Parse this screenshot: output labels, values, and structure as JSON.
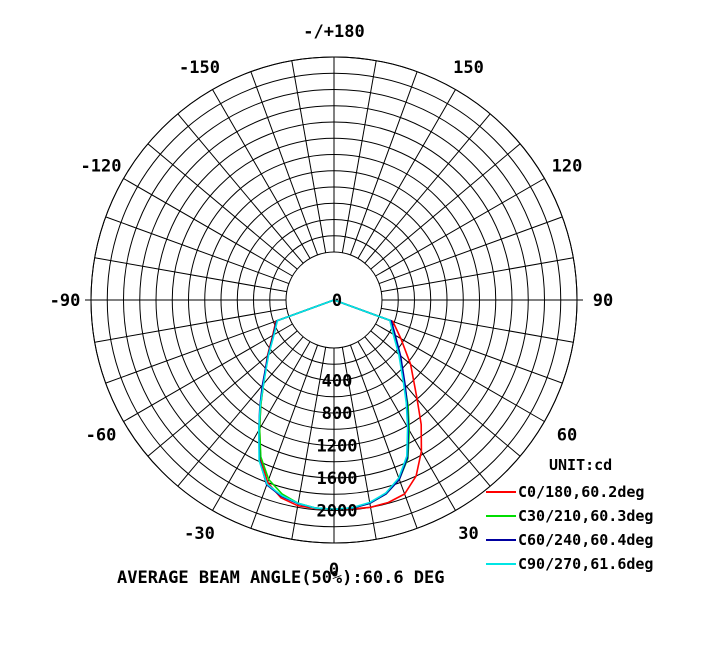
{
  "chart_data": {
    "type": "polar",
    "unit_label": "UNIT:cd",
    "footer": "AVERAGE BEAM ANGLE(50%):60.6 DEG",
    "angle_labels": [
      "-/+180",
      "150",
      "120",
      "90",
      "60",
      "30",
      "0",
      "-30",
      "-60",
      "-90",
      "-120",
      "-150"
    ],
    "angle_values": [
      180,
      150,
      120,
      90,
      60,
      30,
      0,
      -30,
      -60,
      -90,
      -120,
      -150
    ],
    "radial_ticks": [
      0,
      400,
      800,
      1200,
      1600,
      2000
    ],
    "radial_labels": [
      "0",
      "400",
      "800",
      "1200",
      "1600",
      "2000"
    ],
    "rmax": 2400,
    "series": [
      {
        "name": "C0/180,60.2deg",
        "color": "#ff0000",
        "angles": [
          -70,
          -60,
          -50,
          -40,
          -35,
          -30,
          -25,
          -20,
          -15,
          -10,
          -5,
          0,
          5,
          10,
          15,
          20,
          25,
          30,
          35,
          40,
          50,
          60,
          70
        ],
        "values": [
          170,
          280,
          480,
          760,
          980,
          1240,
          1550,
          1800,
          1930,
          1980,
          1985,
          1985,
          1990,
          2000,
          1990,
          1950,
          1800,
          1560,
          1280,
          1000,
          640,
          360,
          180
        ]
      },
      {
        "name": "C30/210,60.3deg",
        "color": "#00dd00",
        "angles": [
          -70,
          -60,
          -50,
          -40,
          -35,
          -30,
          -25,
          -20,
          -15,
          -10,
          -5,
          0,
          5,
          10,
          15,
          20,
          25,
          30,
          35,
          40,
          50,
          60,
          70
        ],
        "values": [
          160,
          270,
          470,
          760,
          980,
          1240,
          1540,
          1760,
          1880,
          1950,
          1980,
          1985,
          1980,
          1950,
          1880,
          1760,
          1560,
          1260,
          1000,
          760,
          460,
          260,
          150
        ]
      },
      {
        "name": "C60/240,60.4deg",
        "color": "#0000a0",
        "angles": [
          -70,
          -60,
          -50,
          -40,
          -35,
          -30,
          -25,
          -20,
          -15,
          -10,
          -5,
          0,
          5,
          10,
          15,
          20,
          25,
          30,
          35,
          40,
          50,
          60,
          70
        ],
        "values": [
          160,
          270,
          470,
          780,
          1000,
          1260,
          1580,
          1830,
          1910,
          1955,
          1980,
          1985,
          1980,
          1950,
          1880,
          1760,
          1550,
          1240,
          980,
          770,
          480,
          280,
          160
        ]
      },
      {
        "name": "C90/270,61.6deg",
        "color": "#00e5e5",
        "angles": [
          -70,
          -60,
          -50,
          -40,
          -35,
          -30,
          -25,
          -20,
          -15,
          -10,
          -5,
          0,
          5,
          10,
          15,
          20,
          25,
          30,
          35,
          40,
          50,
          60,
          70
        ],
        "values": [
          150,
          260,
          460,
          760,
          990,
          1260,
          1590,
          1820,
          1900,
          1950,
          1980,
          1985,
          1975,
          1940,
          1870,
          1740,
          1530,
          1220,
          960,
          740,
          450,
          250,
          140
        ]
      }
    ]
  }
}
